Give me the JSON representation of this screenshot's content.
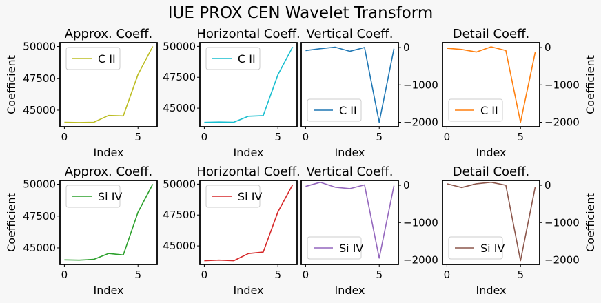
{
  "figure": {
    "title": "IUE PROX CEN Wavelet Transform"
  },
  "chart_data": [
    {
      "type": "line",
      "title": "Approx. Coeff.",
      "xlabel": "Index",
      "ylabel": "Coefficient",
      "x": [
        0,
        1,
        2,
        3,
        4,
        5,
        6
      ],
      "xlim": [
        -0.3,
        6.3
      ],
      "ylim": [
        43700,
        50300
      ],
      "xticks": [
        0,
        5
      ],
      "yticks": [
        45000,
        47500,
        50000
      ],
      "yaxis_side": "left",
      "legend_position": "upper left",
      "series": [
        {
          "name": "C II",
          "color": "#bcbd22",
          "values": [
            44050,
            44030,
            44050,
            44580,
            44550,
            47800,
            50000
          ]
        }
      ]
    },
    {
      "type": "line",
      "title": "Horizontal Coeff.",
      "xlabel": "Index",
      "ylabel": "",
      "x": [
        0,
        1,
        2,
        3,
        4,
        5,
        6
      ],
      "xlim": [
        -0.3,
        6.3
      ],
      "ylim": [
        43500,
        50300
      ],
      "xticks": [
        0,
        5
      ],
      "yticks": [
        45000,
        47500,
        50000
      ],
      "yaxis_side": "left",
      "legend_position": "upper left",
      "series": [
        {
          "name": "C II",
          "color": "#17becf",
          "values": [
            43850,
            43880,
            43860,
            44350,
            44400,
            47700,
            49950
          ]
        }
      ]
    },
    {
      "type": "line",
      "title": "Vertical Coeff.",
      "xlabel": "Index",
      "ylabel": "",
      "x": [
        0,
        1,
        2,
        3,
        4,
        5,
        6
      ],
      "xlim": [
        -0.3,
        6.3
      ],
      "ylim": [
        -2120,
        130
      ],
      "xticks": [
        0,
        5
      ],
      "yticks": [
        -2000,
        -1000,
        0
      ],
      "yaxis_side": "right",
      "legend_position": "lower left",
      "series": [
        {
          "name": "C II",
          "color": "#1f77b4",
          "values": [
            -80,
            -30,
            10,
            -100,
            0,
            -2000,
            -30
          ]
        }
      ]
    },
    {
      "type": "line",
      "title": "Detail Coeff.",
      "xlabel": "Index",
      "ylabel": "Coefficient",
      "x": [
        0,
        1,
        2,
        3,
        4,
        5,
        6
      ],
      "xlim": [
        -0.3,
        6.3
      ],
      "ylim": [
        -2120,
        130
      ],
      "xticks": [
        0,
        5
      ],
      "yticks": [
        -2000,
        -1000,
        0
      ],
      "yaxis_side": "right",
      "legend_position": "lower left",
      "series": [
        {
          "name": "C II",
          "color": "#ff7f0e",
          "values": [
            -20,
            -50,
            -120,
            20,
            -80,
            -2000,
            -120
          ]
        }
      ]
    },
    {
      "type": "line",
      "title": "Approx. Coeff.",
      "xlabel": "Index",
      "ylabel": "Coefficient",
      "x": [
        0,
        1,
        2,
        3,
        4,
        5,
        6
      ],
      "xlim": [
        -0.3,
        6.3
      ],
      "ylim": [
        43700,
        50300
      ],
      "xticks": [
        0,
        5
      ],
      "yticks": [
        45000,
        47500,
        50000
      ],
      "yaxis_side": "left",
      "legend_position": "upper left",
      "series": [
        {
          "name": "Si IV",
          "color": "#2ca02c",
          "values": [
            44060,
            44040,
            44100,
            44560,
            44440,
            47800,
            50000
          ]
        }
      ]
    },
    {
      "type": "line",
      "title": "Horizontal Coeff.",
      "xlabel": "Index",
      "ylabel": "",
      "x": [
        0,
        1,
        2,
        3,
        4,
        5,
        6
      ],
      "xlim": [
        -0.3,
        6.3
      ],
      "ylim": [
        43500,
        50300
      ],
      "xticks": [
        0,
        5
      ],
      "yticks": [
        45000,
        47500,
        50000
      ],
      "yaxis_side": "left",
      "legend_position": "upper left",
      "series": [
        {
          "name": "Si IV",
          "color": "#d62728",
          "values": [
            43800,
            43850,
            43800,
            44380,
            44500,
            47750,
            49950
          ]
        }
      ]
    },
    {
      "type": "line",
      "title": "Vertical Coeff.",
      "xlabel": "Index",
      "ylabel": "",
      "x": [
        0,
        1,
        2,
        3,
        4,
        5,
        6
      ],
      "xlim": [
        -0.3,
        6.3
      ],
      "ylim": [
        -2120,
        130
      ],
      "xticks": [
        0,
        5
      ],
      "yticks": [
        -2000,
        -1000,
        0
      ],
      "yaxis_side": "right",
      "legend_position": "lower left",
      "series": [
        {
          "name": "Si IV",
          "color": "#9467bd",
          "values": [
            -30,
            80,
            -50,
            -90,
            10,
            -1950,
            -10
          ]
        }
      ]
    },
    {
      "type": "line",
      "title": "Detail Coeff.",
      "xlabel": "Index",
      "ylabel": "Coefficient",
      "x": [
        0,
        1,
        2,
        3,
        4,
        5,
        6
      ],
      "xlim": [
        -0.3,
        6.3
      ],
      "ylim": [
        -2120,
        130
      ],
      "xticks": [
        0,
        5
      ],
      "yticks": [
        -2000,
        -1000,
        0
      ],
      "yaxis_side": "right",
      "legend_position": "lower left",
      "series": [
        {
          "name": "Si IV",
          "color": "#8c564b",
          "values": [
            40,
            -60,
            40,
            80,
            0,
            -2020,
            -40
          ]
        }
      ]
    }
  ]
}
